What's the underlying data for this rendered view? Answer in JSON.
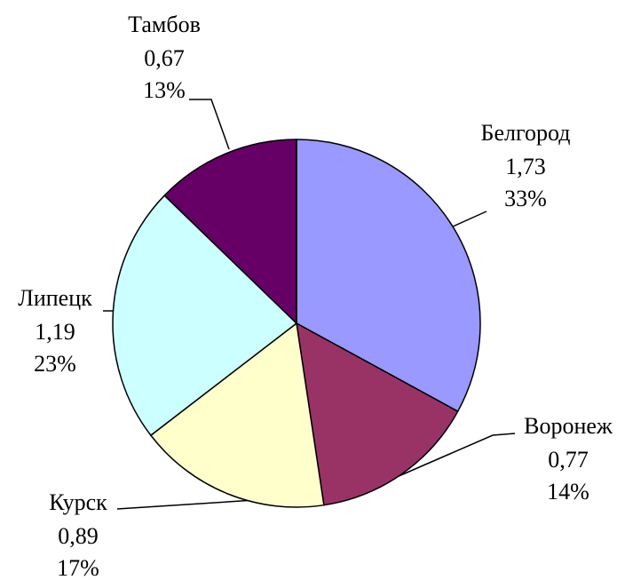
{
  "chart_data": {
    "type": "pie",
    "categories": [
      "Белгород",
      "Воронеж",
      "Курск",
      "Липецк",
      "Тамбов"
    ],
    "values": [
      1.73,
      0.77,
      0.89,
      1.19,
      0.67
    ],
    "value_labels": [
      "1,73",
      "0,77",
      "0,89",
      "1,19",
      "0,67"
    ],
    "percents": [
      33,
      14,
      17,
      23,
      13
    ],
    "percent_labels": [
      "33%",
      "14%",
      "17%",
      "23%",
      "13%"
    ],
    "colors": [
      "#9999ff",
      "#993366",
      "#ffffcc",
      "#ccffff",
      "#660066"
    ]
  }
}
